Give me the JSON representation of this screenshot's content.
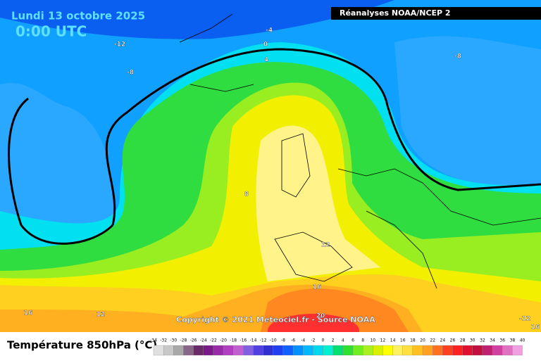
{
  "header": {
    "title": "Lundi 13 octobre 2025",
    "time": "0:00 UTC",
    "source": "Réanalyses NOAA/NCEP 2"
  },
  "contour_labels": [
    "-4",
    "0",
    "4",
    "-12",
    "-8",
    "-8",
    "8",
    "12",
    "16",
    "20",
    "16",
    "12",
    "-12",
    "16"
  ],
  "copyright": "Copyright © 2021 Meteociel.fr - Source NOAA",
  "legend": {
    "title": "Température 850hPa (°C)",
    "ticks": [
      "-34",
      "-32",
      "-30",
      "-28",
      "-26",
      "-24",
      "-22",
      "-20",
      "-18",
      "-16",
      "-14",
      "-12",
      "-10",
      "-8",
      "-6",
      "-4",
      "-2",
      "0",
      "2",
      "4",
      "6",
      "8",
      "10",
      "12",
      "14",
      "16",
      "18",
      "20",
      "22",
      "24",
      "26",
      "28",
      "30",
      "32",
      "34",
      "36",
      "38",
      "40"
    ]
  }
}
